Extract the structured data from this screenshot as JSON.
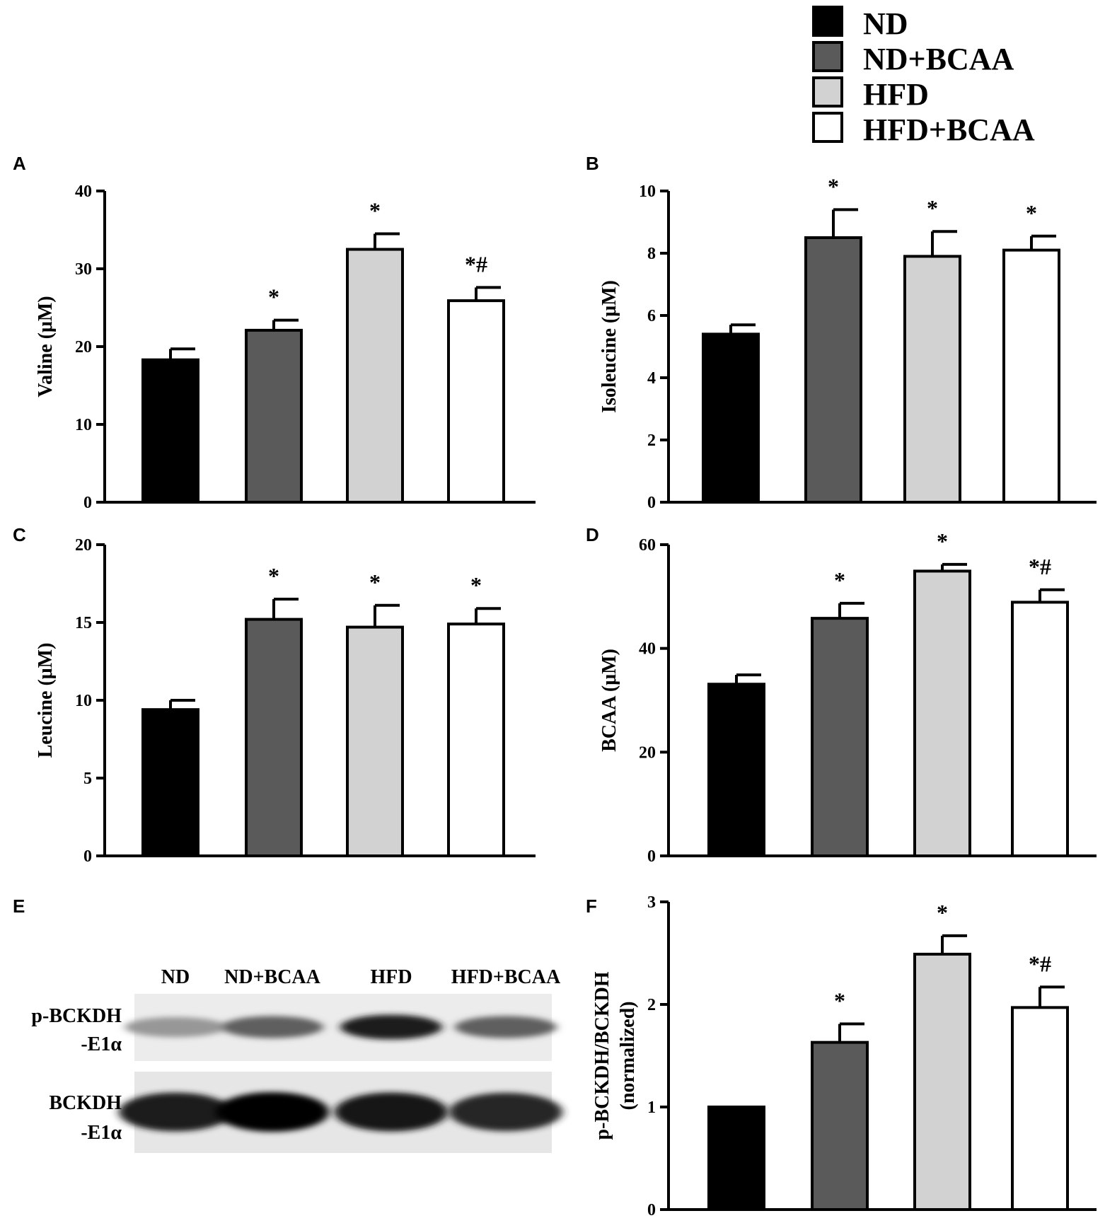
{
  "legend": {
    "items": [
      {
        "label": "ND",
        "color": "#000000"
      },
      {
        "label": "ND+BCAA",
        "color": "#5a5a5a"
      },
      {
        "label": "HFD",
        "color": "#d2d2d2"
      },
      {
        "label": "HFD+BCAA",
        "color": "#ffffff"
      }
    ]
  },
  "chart_data": [
    {
      "panel": "A",
      "type": "bar",
      "ylabel": "Valine (μM)",
      "categories": [
        "ND",
        "ND+BCAA",
        "HFD",
        "HFD+BCAA"
      ],
      "values": [
        18.3,
        22.1,
        32.5,
        25.9
      ],
      "errors": [
        1.4,
        1.3,
        2.0,
        1.7
      ],
      "annotations": [
        "",
        "*",
        "*",
        "*#"
      ],
      "ylim": [
        0,
        40
      ],
      "yticks": [
        0,
        10,
        20,
        30,
        40
      ]
    },
    {
      "panel": "B",
      "type": "bar",
      "ylabel": "Isoleucine (μM)",
      "categories": [
        "ND",
        "ND+BCAA",
        "HFD",
        "HFD+BCAA"
      ],
      "values": [
        5.4,
        8.5,
        7.9,
        8.1
      ],
      "errors": [
        0.3,
        0.9,
        0.8,
        0.45
      ],
      "annotations": [
        "",
        "*",
        "*",
        "*"
      ],
      "ylim": [
        0,
        10
      ],
      "yticks": [
        0,
        2,
        4,
        6,
        8,
        10
      ]
    },
    {
      "panel": "C",
      "type": "bar",
      "ylabel": "Leucine (μM)",
      "categories": [
        "ND",
        "ND+BCAA",
        "HFD",
        "HFD+BCAA"
      ],
      "values": [
        9.4,
        15.2,
        14.7,
        14.9
      ],
      "errors": [
        0.6,
        1.3,
        1.4,
        1.0
      ],
      "annotations": [
        "",
        "*",
        "*",
        "*"
      ],
      "ylim": [
        0,
        20
      ],
      "yticks": [
        0,
        5,
        10,
        15,
        20
      ]
    },
    {
      "panel": "D",
      "type": "bar",
      "ylabel": "BCAA (μM)",
      "categories": [
        "ND",
        "ND+BCAA",
        "HFD",
        "HFD+BCAA"
      ],
      "values": [
        33.1,
        45.8,
        54.9,
        48.9
      ],
      "errors": [
        1.8,
        2.9,
        1.3,
        2.4
      ],
      "annotations": [
        "",
        "*",
        "*",
        "*#"
      ],
      "ylim": [
        0,
        60
      ],
      "yticks": [
        0,
        20,
        40,
        60
      ]
    },
    {
      "panel": "F",
      "type": "bar",
      "ylabel": "p-BCKDH/BCKDH\n(normalized)",
      "categories": [
        "ND",
        "ND+BCAA",
        "HFD",
        "HFD+BCAA"
      ],
      "values": [
        1.0,
        1.63,
        2.49,
        1.97
      ],
      "errors": [
        0.0,
        0.18,
        0.18,
        0.2
      ],
      "annotations": [
        "",
        "*",
        "*",
        "*#"
      ],
      "ylim": [
        0,
        3
      ],
      "yticks": [
        0,
        1,
        2,
        3
      ]
    }
  ],
  "blot": {
    "panel": "E",
    "lanes": [
      "ND",
      "ND+BCAA",
      "HFD",
      "HFD+BCAA"
    ],
    "rows": [
      {
        "label_line1": "p-BCKDH",
        "label_line2": "-E1α",
        "intensities": [
          0.35,
          0.6,
          0.9,
          0.6
        ]
      },
      {
        "label_line1": "BCKDH",
        "label_line2": "-E1α",
        "intensities": [
          0.9,
          1.0,
          0.92,
          0.85
        ]
      }
    ]
  }
}
